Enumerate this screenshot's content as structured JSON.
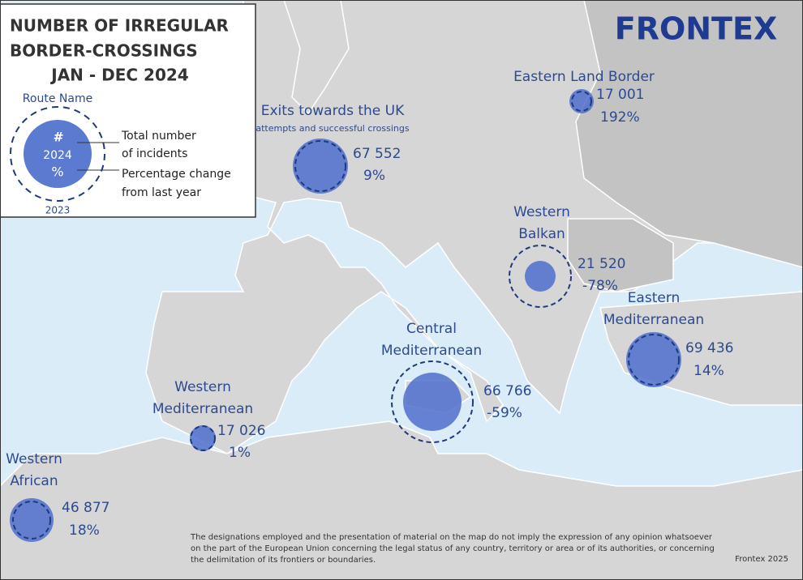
{
  "title": [
    "NUMBER OF IRREGULAR",
    "BORDER-CROSSINGS",
    "JAN - DEC 2024"
  ],
  "logo": "FRONTEX",
  "legend": {
    "route": "Route Name",
    "count": "#",
    "year": "2024",
    "change": "%",
    "prev_year": "2023",
    "count_desc": [
      "Total number",
      "of incidents"
    ],
    "change_desc": [
      "Percentage change",
      "from last year"
    ]
  },
  "routes": [
    {
      "name": [
        "Eastern Land Border"
      ],
      "count": "17 001",
      "change": "192%"
    },
    {
      "name": [
        "Exits towards the UK"
      ],
      "note": "attempts and successful crossings",
      "count": "67 552",
      "change": "9%"
    },
    {
      "name": [
        "Western",
        "Balkan"
      ],
      "count": "21 520",
      "change": "-78%"
    },
    {
      "name": [
        "Eastern",
        "Mediterranean"
      ],
      "count": "69 436",
      "change": "14%"
    },
    {
      "name": [
        "Central",
        "Mediterranean"
      ],
      "count": "66 766",
      "change": "-59%"
    },
    {
      "name": [
        "Western",
        "Mediterranean"
      ],
      "count": "17 026",
      "change": "1%"
    },
    {
      "name": [
        "Western",
        "African"
      ],
      "count": "46 877",
      "change": "18%"
    }
  ],
  "disclaimer": [
    "The designations employed and the presentation of material on the map do not imply the expression of any opinion whatsoever",
    "on the part of the European Union concerning the legal status of any country, territory or area or of its authorities, or concerning",
    "the delimitation of its frontiers or boundaries."
  ],
  "credit": "Frontex 2025"
}
